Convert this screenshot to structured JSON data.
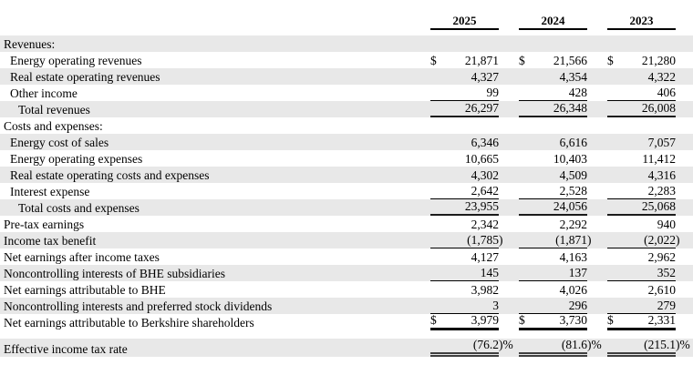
{
  "table": {
    "columns": [
      "2025",
      "2024",
      "2023"
    ],
    "currency_symbol": "$",
    "rows": [
      {
        "label": "Revenues:",
        "indent": 0,
        "shaded": true,
        "values": [
          "",
          "",
          ""
        ]
      },
      {
        "label": "Energy operating revenues",
        "indent": 1,
        "shaded": false,
        "dollar": true,
        "values": [
          "21,871",
          "21,566",
          "21,280"
        ]
      },
      {
        "label": "Real estate operating revenues",
        "indent": 1,
        "shaded": true,
        "values": [
          "4,327",
          "4,354",
          "4,322"
        ]
      },
      {
        "label": "Other income",
        "indent": 1,
        "shaded": false,
        "underline": "thin",
        "values": [
          "99",
          "428",
          "406"
        ]
      },
      {
        "label": "Total revenues",
        "indent": 2,
        "shaded": true,
        "underline": "medium",
        "values": [
          "26,297",
          "26,348",
          "26,008"
        ]
      },
      {
        "label": "Costs and expenses:",
        "indent": 0,
        "shaded": false,
        "values": [
          "",
          "",
          ""
        ]
      },
      {
        "label": "Energy cost of sales",
        "indent": 1,
        "shaded": true,
        "values": [
          "6,346",
          "6,616",
          "7,057"
        ]
      },
      {
        "label": "Energy operating expenses",
        "indent": 1,
        "shaded": false,
        "values": [
          "10,665",
          "10,403",
          "11,412"
        ]
      },
      {
        "label": "Real estate operating costs and expenses",
        "indent": 1,
        "shaded": true,
        "values": [
          "4,302",
          "4,509",
          "4,316"
        ]
      },
      {
        "label": "Interest expense",
        "indent": 1,
        "shaded": false,
        "underline": "thin",
        "values": [
          "2,642",
          "2,528",
          "2,283"
        ]
      },
      {
        "label": "Total costs and expenses",
        "indent": 2,
        "shaded": true,
        "underline": "medium",
        "values": [
          "23,955",
          "24,056",
          "25,068"
        ]
      },
      {
        "label": "Pre-tax earnings",
        "indent": 0,
        "shaded": false,
        "values": [
          "2,342",
          "2,292",
          "940"
        ]
      },
      {
        "label": "Income tax benefit",
        "indent": 0,
        "shaded": true,
        "underline": "thin",
        "values": [
          "(1,785)",
          "(1,871)",
          "(2,022)"
        ]
      },
      {
        "label": "Net earnings after income taxes",
        "indent": 0,
        "shaded": false,
        "values": [
          "4,127",
          "4,163",
          "2,962"
        ]
      },
      {
        "label": "Noncontrolling interests of BHE subsidiaries",
        "indent": 0,
        "shaded": true,
        "underline": "thin",
        "values": [
          "145",
          "137",
          "352"
        ]
      },
      {
        "label": "Net earnings attributable to BHE",
        "indent": 0,
        "shaded": false,
        "values": [
          "3,982",
          "4,026",
          "2,610"
        ]
      },
      {
        "label": "Noncontrolling interests and preferred stock dividends",
        "indent": 0,
        "shaded": true,
        "underline": "thin",
        "values": [
          "3",
          "296",
          "279"
        ]
      },
      {
        "label": "Net earnings attributable to Berkshire shareholders",
        "indent": 0,
        "shaded": false,
        "dollar": true,
        "underline": "thick",
        "gap_after": true,
        "values": [
          "3,979",
          "3,730",
          "2,331"
        ]
      },
      {
        "label": "Effective income tax rate",
        "indent": 0,
        "shaded": true,
        "underline": "double",
        "values": [
          "(76.2)%",
          "(81.6)%",
          "(215.1)%"
        ]
      }
    ]
  }
}
